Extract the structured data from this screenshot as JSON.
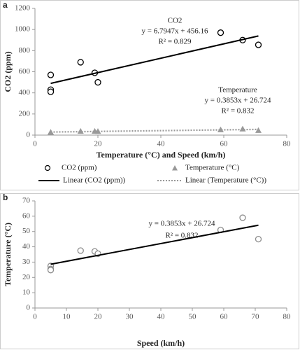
{
  "chart_data": [
    {
      "type": "scatter",
      "panel": "a",
      "xlabel": "Temperature (°C) and  Speed (km/h)",
      "ylabel": "CO2 (ppm)",
      "xlim": [
        0,
        80
      ],
      "xticks": [
        0,
        20,
        40,
        60,
        80
      ],
      "ylim": [
        0,
        1200
      ],
      "yticks": [
        0,
        200,
        400,
        600,
        800,
        1000,
        1200
      ],
      "annotations": [
        "CO2",
        "y = 6.7947x + 456.16",
        "R² = 0.829",
        "Temperature",
        "y = 0.3853x + 26.724",
        "R² = 0.832"
      ],
      "series": [
        {
          "name": "CO2 (ppm)",
          "marker": "circle",
          "color": "#000000",
          "x": [
            5,
            5,
            5,
            14.5,
            19,
            20,
            59,
            66,
            71
          ],
          "values": [
            570,
            430,
            410,
            690,
            590,
            500,
            970,
            900,
            855
          ]
        },
        {
          "name": "Temperature (°C)",
          "marker": "triangle",
          "color": "#999999",
          "x": [
            5,
            5,
            5,
            14.5,
            19,
            20,
            59,
            66,
            71
          ],
          "values": [
            27.5,
            25.5,
            24.8,
            37.5,
            37,
            35.5,
            51,
            59,
            45
          ]
        },
        {
          "name": "Linear (CO2 (ppm))",
          "marker": "line",
          "color": "#000000",
          "x": [
            5,
            71
          ],
          "values": [
            490,
            939
          ]
        },
        {
          "name": "Linear (Temperature (°C))",
          "marker": "dotted",
          "color": "#999999",
          "x": [
            5,
            71
          ],
          "values": [
            29,
            54
          ]
        }
      ]
    },
    {
      "type": "scatter",
      "panel": "b",
      "xlabel": "Speed (km/h)",
      "ylabel": "Temperature (°C)",
      "xlim": [
        0,
        80
      ],
      "xticks": [
        0,
        10,
        20,
        30,
        40,
        50,
        60,
        70,
        80
      ],
      "ylim": [
        0,
        70
      ],
      "yticks": [
        0,
        10,
        20,
        30,
        40,
        50,
        60,
        70
      ],
      "annotations": [
        "y = 0.3853x + 26.724",
        "R² = 0.832"
      ],
      "series": [
        {
          "marker": "circle",
          "color": "#8c8c8c",
          "x": [
            5,
            5,
            5,
            14.5,
            19,
            20,
            59,
            66,
            71
          ],
          "values": [
            27.5,
            25.5,
            24.8,
            37.5,
            37,
            35.5,
            51,
            59,
            45
          ]
        },
        {
          "marker": "line",
          "color": "#000000",
          "x": [
            5,
            71
          ],
          "values": [
            28.6,
            54.1
          ]
        }
      ]
    }
  ]
}
